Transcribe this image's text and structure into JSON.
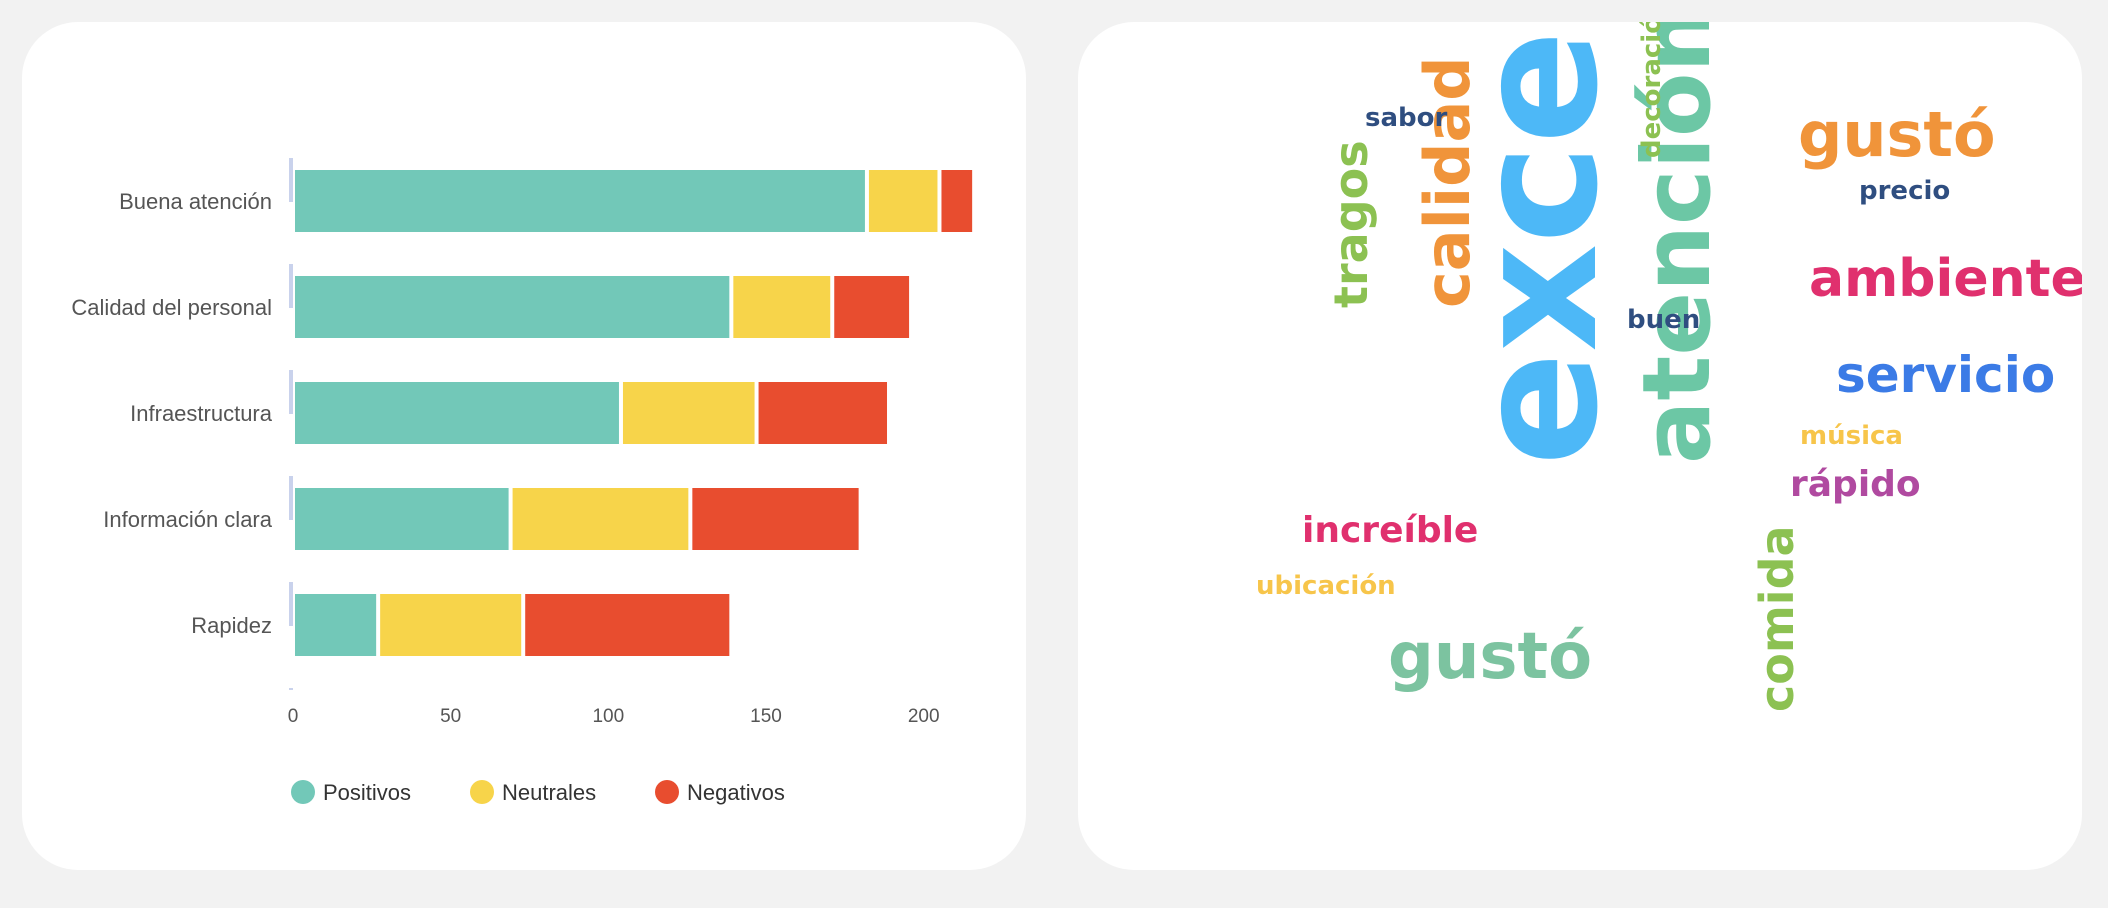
{
  "chart_data": {
    "type": "bar",
    "orientation": "horizontal",
    "stacked": true,
    "categories": [
      "Buena atención",
      "Calidad del personal",
      "Infraestructura",
      "Información clara",
      "Rapidez"
    ],
    "series": [
      {
        "name": "Positivos",
        "color": "#72c8b8",
        "values": [
          182,
          139,
          104,
          69,
          27
        ]
      },
      {
        "name": "Neutrales",
        "color": "#f7d44a",
        "values": [
          23,
          32,
          43,
          57,
          46
        ]
      },
      {
        "name": "Negativos",
        "color": "#e84d2f",
        "values": [
          11,
          25,
          42,
          54,
          66
        ]
      }
    ],
    "xticks": [
      0,
      50,
      100,
      150,
      200
    ],
    "xlim": [
      0,
      215
    ],
    "title": "",
    "xlabel": "",
    "ylabel": "",
    "grid": false,
    "legend_position": "bottom"
  },
  "word_cloud": {
    "words": [
      {
        "text": "excelente",
        "color": "#4db8f7",
        "orientation": "vertical"
      },
      {
        "text": "atención",
        "color": "#6cc7a5",
        "orientation": "vertical"
      },
      {
        "text": "calidad",
        "color": "#f0943a",
        "orientation": "vertical"
      },
      {
        "text": "tragos",
        "color": "#8cc152",
        "orientation": "vertical"
      },
      {
        "text": "comida",
        "color": "#8cc152",
        "orientation": "vertical"
      },
      {
        "text": "decoración",
        "color": "#8cc152",
        "orientation": "vertical"
      },
      {
        "text": "gustó",
        "color": "#f0943a",
        "orientation": "horizontal"
      },
      {
        "text": "gustó",
        "color": "#7cc3a0",
        "orientation": "horizontal"
      },
      {
        "text": "ambiente",
        "color": "#e0306e",
        "orientation": "horizontal"
      },
      {
        "text": "servicio",
        "color": "#3b7be6",
        "orientation": "horizontal"
      },
      {
        "text": "sabor",
        "color": "#2f4e80",
        "orientation": "horizontal"
      },
      {
        "text": "precio",
        "color": "#2f4e80",
        "orientation": "horizontal"
      },
      {
        "text": "buen",
        "color": "#2f4e80",
        "orientation": "horizontal"
      },
      {
        "text": "música",
        "color": "#f7c54a",
        "orientation": "horizontal"
      },
      {
        "text": "rápido",
        "color": "#b04aa0",
        "orientation": "horizontal"
      },
      {
        "text": "increíble",
        "color": "#e0306e",
        "orientation": "horizontal"
      },
      {
        "text": "ubicación",
        "color": "#f7c54a",
        "orientation": "horizontal"
      }
    ]
  }
}
